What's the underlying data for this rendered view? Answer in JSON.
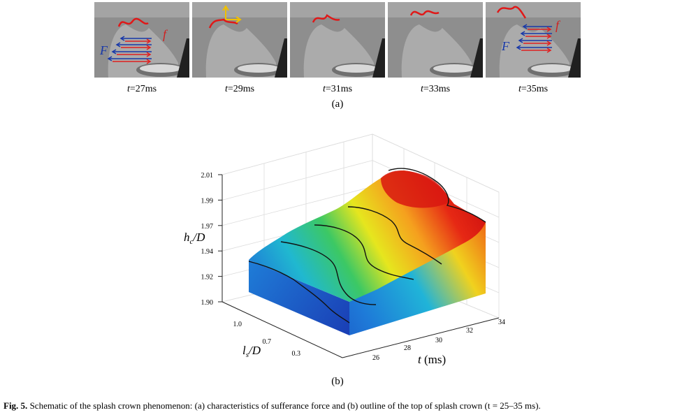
{
  "panel_a": {
    "frames": [
      {
        "prefix": "t",
        "suffix": "=27ms",
        "F_label": "F",
        "f_label": "f"
      },
      {
        "prefix": "t",
        "suffix": "=29ms"
      },
      {
        "prefix": "t",
        "suffix": "=31ms"
      },
      {
        "prefix": "t",
        "suffix": "=33ms"
      },
      {
        "prefix": "t",
        "suffix": "=35ms",
        "F_label": "F",
        "f_label": "f"
      }
    ],
    "label": "(a)"
  },
  "panel_b": {
    "label": "(b)",
    "colors": {
      "low": "#1a3fbf",
      "mid": "#25c8c8",
      "green": "#46c850",
      "yellow": "#f5e61e",
      "orange": "#f58c1e",
      "high": "#e61e14"
    }
  },
  "chart_data": {
    "type": "surface",
    "zlabel_main": "h",
    "zlabel_sub": "c",
    "zlabel_tail": "/D",
    "xlabel_main": "t",
    "xlabel_tail": " (ms)",
    "ylabel_main": "l",
    "ylabel_sub": "s",
    "ylabel_tail": "/D",
    "z_ticks": [
      "2.01",
      "1.99",
      "1.97",
      "1.94",
      "1.92",
      "1.90"
    ],
    "x_ticks": [
      "26",
      "28",
      "30",
      "32",
      "34"
    ],
    "y_ticks": [
      "1.0",
      "0.7",
      "0.3"
    ],
    "zlim": [
      1.9,
      2.01
    ],
    "xlim": [
      25,
      35
    ],
    "grid": true
  },
  "caption": {
    "fig_label": "Fig. 5.",
    "text": " Schematic of the splash crown phenomenon: (a) characteristics of sufferance force and (b) outline of the top of splash crown (t = 25–35 ms)."
  }
}
